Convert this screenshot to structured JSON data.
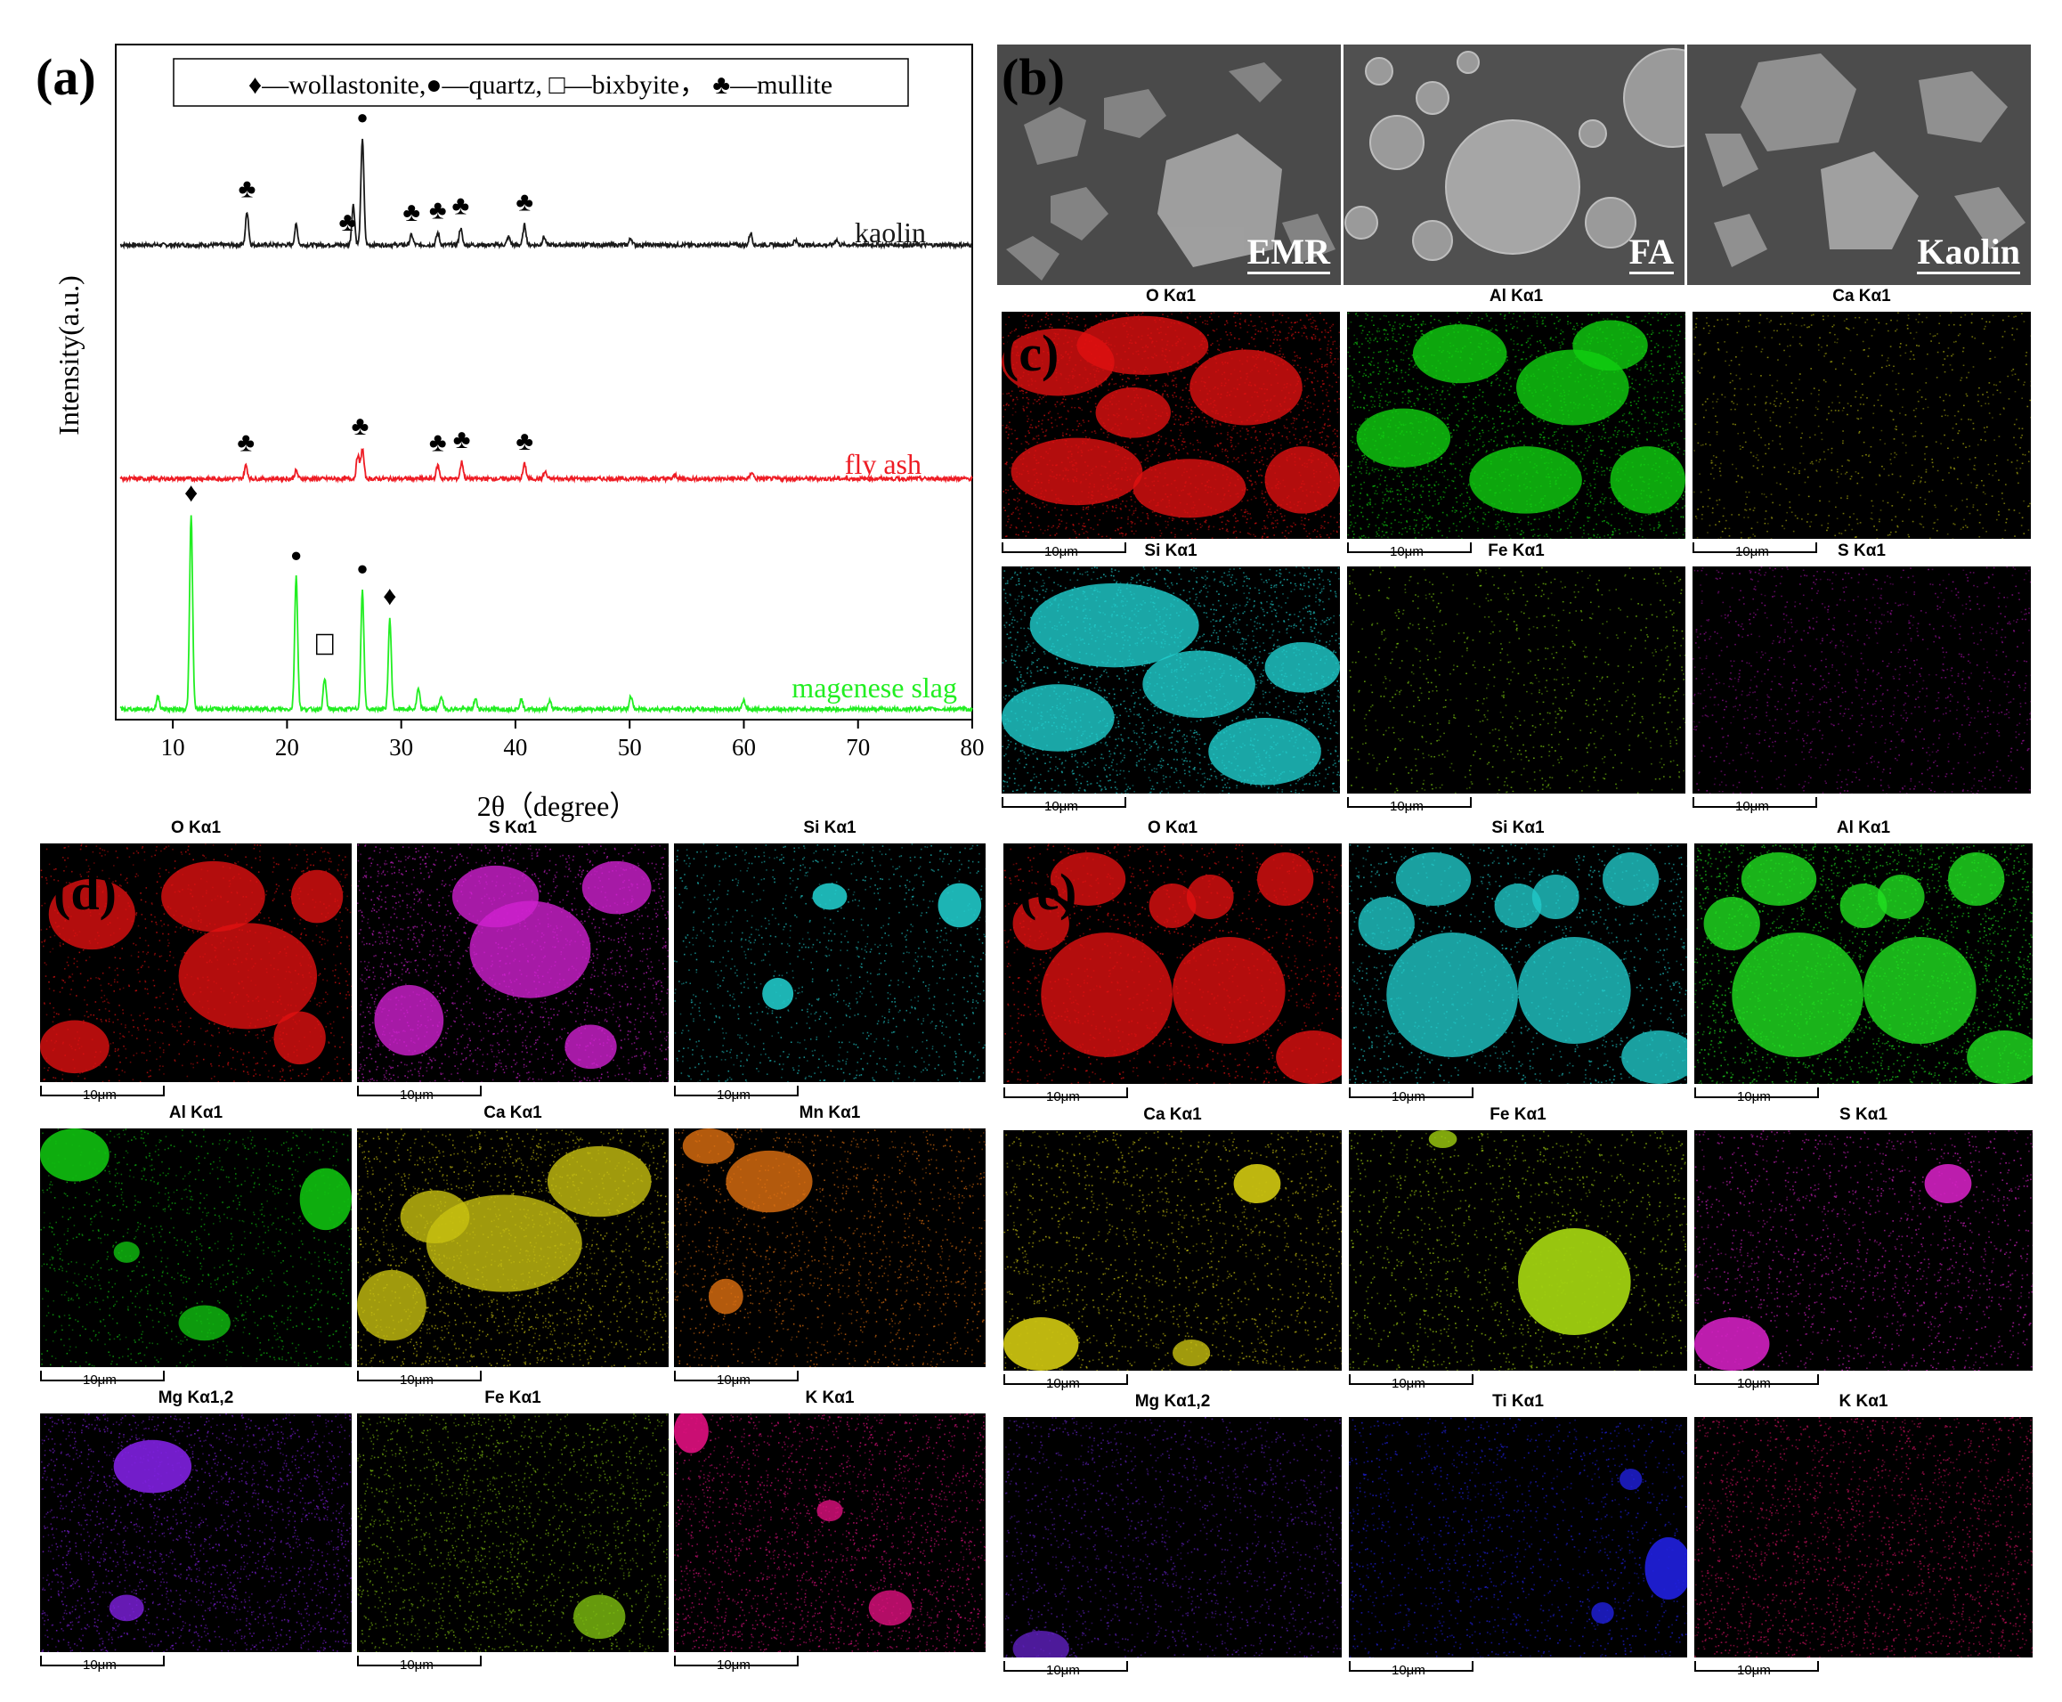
{
  "panel_a": {
    "letter": "(a)",
    "legend": "♦—wollastonite,●—quartz, □—bixbyite， ♣—mullite",
    "ylabel": "Intensity(a.u.)",
    "xlabel": "2θ（degree）",
    "series_labels": {
      "kaolin": "kaolin",
      "fly_ash": "fly ash",
      "slag": "magenese slag"
    },
    "colors": {
      "kaolin": "#1a1a1a",
      "fly_ash": "#ee1c24",
      "slag": "#22ee22"
    }
  },
  "panel_b": {
    "letter": "(b)",
    "tiles": [
      "EMR",
      "FA",
      "Kaolin"
    ]
  },
  "panel_c": {
    "letter": "(c)",
    "maps": [
      {
        "label": "O Kα1",
        "color": "#e01010",
        "scale": "10μm"
      },
      {
        "label": "Al Kα1",
        "color": "#10d010",
        "scale": "10μm"
      },
      {
        "label": "Ca Kα1",
        "color": "#b0b010",
        "scale": "10μm"
      },
      {
        "label": "Si Kα1",
        "color": "#20d0d0",
        "scale": "10μm"
      },
      {
        "label": "Fe Kα1",
        "color": "#80d010",
        "scale": "10μm"
      },
      {
        "label": "S Kα1",
        "color": "#a010a0",
        "scale": "10μm"
      }
    ]
  },
  "panel_d": {
    "letter": "(d)",
    "maps": [
      {
        "label": "O Kα1",
        "color": "#e01010",
        "scale": "10μm"
      },
      {
        "label": "S Kα1",
        "color": "#d020d0",
        "scale": "10μm"
      },
      {
        "label": "Si Kα1",
        "color": "#20c8c8",
        "scale": "10μm"
      },
      {
        "label": "Al Kα1",
        "color": "#10c010",
        "scale": "10μm"
      },
      {
        "label": "Ca Kα1",
        "color": "#c8c010",
        "scale": "10μm"
      },
      {
        "label": "Mn Kα1",
        "color": "#e07010",
        "scale": "10μm"
      },
      {
        "label": "Mg Kα1,2",
        "color": "#8020e0",
        "scale": "10μm"
      },
      {
        "label": "Fe Kα1",
        "color": "#80c010",
        "scale": "10μm"
      },
      {
        "label": "K Kα1",
        "color": "#e01080",
        "scale": "10μm"
      }
    ]
  },
  "panel_e": {
    "letter": "(e)",
    "maps": [
      {
        "label": "O Kα1",
        "color": "#e01010",
        "scale": "10μm"
      },
      {
        "label": "Si Kα1",
        "color": "#20c8c8",
        "scale": "10μm"
      },
      {
        "label": "Al Kα1",
        "color": "#20e020",
        "scale": "10μm"
      },
      {
        "label": "Ca Kα1",
        "color": "#c8c010",
        "scale": "10μm"
      },
      {
        "label": "Fe Kα1",
        "color": "#a0d010",
        "scale": "10μm"
      },
      {
        "label": "S Kα1",
        "color": "#d020c0",
        "scale": "10μm"
      },
      {
        "label": "Mg Kα1,2",
        "color": "#6020c0",
        "scale": "10μm"
      },
      {
        "label": "Ti Kα1",
        "color": "#2020e0",
        "scale": "10μm"
      },
      {
        "label": "K Kα1",
        "color": "#d01060",
        "scale": "10μm"
      }
    ]
  },
  "chart_data": {
    "type": "line",
    "title": "",
    "xlabel": "2θ（degree）",
    "ylabel": "Intensity(a.u.)",
    "xlim": [
      5,
      80
    ],
    "xticks": [
      10,
      20,
      30,
      40,
      50,
      60,
      70,
      80
    ],
    "series": [
      {
        "name": "kaolin",
        "baseline": 0.7,
        "peaks": [
          [
            16.5,
            0.05
          ],
          [
            20.8,
            0.03
          ],
          [
            25.8,
            0.06
          ],
          [
            26.6,
            0.16
          ],
          [
            30.9,
            0.015
          ],
          [
            33.2,
            0.018
          ],
          [
            35.2,
            0.025
          ],
          [
            39.4,
            0.012
          ],
          [
            40.8,
            0.03
          ],
          [
            42.5,
            0.012
          ],
          [
            50.1,
            0.01
          ],
          [
            60.6,
            0.018
          ],
          [
            64.5,
            0.008
          ],
          [
            68.1,
            0.008
          ]
        ]
      },
      {
        "name": "fly ash",
        "baseline": 0.35,
        "peaks": [
          [
            16.4,
            0.02
          ],
          [
            20.8,
            0.012
          ],
          [
            26.2,
            0.035
          ],
          [
            26.6,
            0.045
          ],
          [
            33.2,
            0.02
          ],
          [
            35.3,
            0.025
          ],
          [
            40.8,
            0.022
          ],
          [
            42.6,
            0.01
          ],
          [
            54.0,
            0.006
          ],
          [
            60.7,
            0.01
          ]
        ]
      },
      {
        "name": "magenese slag",
        "baseline": 0.005,
        "peaks": [
          [
            8.7,
            0.02
          ],
          [
            11.6,
            0.29
          ],
          [
            20.8,
            0.2
          ],
          [
            23.3,
            0.045
          ],
          [
            26.6,
            0.18
          ],
          [
            29.0,
            0.135
          ],
          [
            31.5,
            0.03
          ],
          [
            33.5,
            0.02
          ],
          [
            36.5,
            0.015
          ],
          [
            40.5,
            0.015
          ],
          [
            43.0,
            0.012
          ],
          [
            50.1,
            0.02
          ],
          [
            60.0,
            0.012
          ]
        ]
      }
    ],
    "annotations": [
      {
        "series": "kaolin",
        "x": 16.5,
        "symbol": "♣"
      },
      {
        "series": "kaolin",
        "x": 25.3,
        "symbol": "♣"
      },
      {
        "series": "kaolin",
        "x": 26.6,
        "symbol": "●"
      },
      {
        "series": "kaolin",
        "x": 30.9,
        "symbol": "♣"
      },
      {
        "series": "kaolin",
        "x": 33.2,
        "symbol": "♣"
      },
      {
        "series": "kaolin",
        "x": 35.2,
        "symbol": "♣"
      },
      {
        "series": "kaolin",
        "x": 40.8,
        "symbol": "♣"
      },
      {
        "series": "fly ash",
        "x": 16.4,
        "symbol": "♣"
      },
      {
        "series": "fly ash",
        "x": 26.4,
        "symbol": "♣"
      },
      {
        "series": "fly ash",
        "x": 33.2,
        "symbol": "♣"
      },
      {
        "series": "fly ash",
        "x": 35.3,
        "symbol": "♣"
      },
      {
        "series": "fly ash",
        "x": 40.8,
        "symbol": "♣"
      },
      {
        "series": "magenese slag",
        "x": 11.6,
        "symbol": "♦"
      },
      {
        "series": "magenese slag",
        "x": 20.8,
        "symbol": "●"
      },
      {
        "series": "magenese slag",
        "x": 23.3,
        "symbol": "□"
      },
      {
        "series": "magenese slag",
        "x": 26.6,
        "symbol": "●"
      },
      {
        "series": "magenese slag",
        "x": 29.0,
        "symbol": "♦"
      }
    ],
    "grid": false
  }
}
